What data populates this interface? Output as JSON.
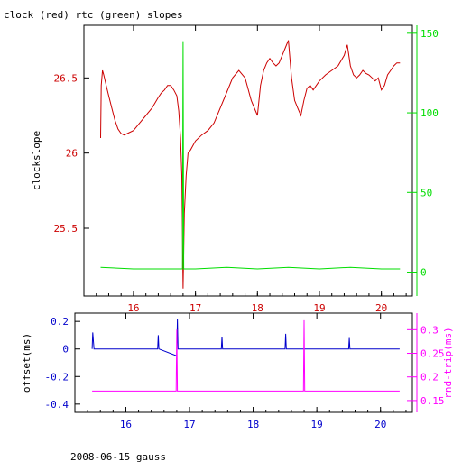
{
  "footer": "2008-06-15 gauss",
  "colors": {
    "frame": "#000000",
    "clock": "#cc0000",
    "rtc": "#00dd00",
    "offset": "#0000cc",
    "roundtrip": "#ff00ff"
  },
  "chart_data": [
    {
      "type": "line",
      "title": "clock (red) rtc (green) slopes",
      "xlabel": "",
      "ylabel": "clockslope",
      "y2label": "",
      "xlim": [
        15.2,
        20.5
      ],
      "ylim": [
        25.05,
        26.85
      ],
      "y2lim": [
        -15,
        155
      ],
      "xticks": [
        16,
        17,
        18,
        19,
        20
      ],
      "yticks": [
        25.5,
        26,
        26.5
      ],
      "y2ticks": [
        0,
        50,
        100,
        150
      ],
      "xticklabels": [
        "16",
        "17",
        "18",
        "19",
        "20"
      ],
      "yticklabels": [
        "25.5",
        "26",
        "26.5"
      ],
      "y2ticklabels": [
        "0",
        "50",
        "100",
        "150"
      ],
      "grid": false,
      "series": [
        {
          "name": "clock",
          "axis": "left",
          "x": [
            15.47,
            15.48,
            15.5,
            15.52,
            15.56,
            15.6,
            15.65,
            15.7,
            15.75,
            15.8,
            15.85,
            15.9,
            16.0,
            16.1,
            16.2,
            16.3,
            16.4,
            16.45,
            16.5,
            16.55,
            16.6,
            16.65,
            16.7,
            16.73,
            16.76,
            16.78,
            16.8,
            16.82,
            16.85,
            16.88,
            16.92,
            17.0,
            17.1,
            17.2,
            17.3,
            17.4,
            17.5,
            17.6,
            17.7,
            17.8,
            17.9,
            18.0,
            18.05,
            18.1,
            18.15,
            18.2,
            18.25,
            18.3,
            18.35,
            18.4,
            18.45,
            18.5,
            18.55,
            18.6,
            18.65,
            18.7,
            18.75,
            18.8,
            18.85,
            18.9,
            19.0,
            19.1,
            19.2,
            19.3,
            19.4,
            19.45,
            19.5,
            19.55,
            19.6,
            19.65,
            19.7,
            19.75,
            19.8,
            19.85,
            19.9,
            19.95,
            20.0,
            20.05,
            20.1,
            20.15,
            20.2,
            20.25,
            20.3
          ],
          "y": [
            26.1,
            26.45,
            26.55,
            26.52,
            26.45,
            26.38,
            26.3,
            26.22,
            26.16,
            26.13,
            26.12,
            26.13,
            26.15,
            26.2,
            26.25,
            26.3,
            26.37,
            26.4,
            26.42,
            26.45,
            26.45,
            26.42,
            26.38,
            26.28,
            26.1,
            25.85,
            25.1,
            25.6,
            25.85,
            26.0,
            26.02,
            26.08,
            26.12,
            26.15,
            26.2,
            26.3,
            26.4,
            26.5,
            26.55,
            26.5,
            26.35,
            26.25,
            26.45,
            26.55,
            26.6,
            26.63,
            26.6,
            26.58,
            26.6,
            26.65,
            26.7,
            26.75,
            26.5,
            26.35,
            26.3,
            26.25,
            26.35,
            26.43,
            26.45,
            26.42,
            26.48,
            26.52,
            26.55,
            26.58,
            26.65,
            26.72,
            26.58,
            26.52,
            26.5,
            26.52,
            26.55,
            26.53,
            26.52,
            26.5,
            26.48,
            26.5,
            26.42,
            26.45,
            26.52,
            26.55,
            26.58,
            26.6,
            26.6
          ]
        },
        {
          "name": "rtc",
          "axis": "right",
          "x": [
            15.47,
            16.0,
            16.5,
            16.79,
            16.8,
            16.81,
            17.0,
            17.5,
            18.0,
            18.5,
            19.0,
            19.5,
            20.0,
            20.3
          ],
          "y": [
            3,
            2,
            2,
            2,
            145,
            2,
            2,
            3,
            2,
            3,
            2,
            3,
            2,
            2
          ]
        }
      ]
    },
    {
      "type": "line",
      "xlabel": "",
      "ylabel": "offset(ms)",
      "y2label": "rnd-trip(ms)",
      "xlim": [
        15.2,
        20.5
      ],
      "ylim": [
        -0.46,
        0.26
      ],
      "y2lim": [
        0.125,
        0.335
      ],
      "xticks": [
        16,
        17,
        18,
        19,
        20
      ],
      "yticks": [
        -0.4,
        -0.2,
        0,
        0.2
      ],
      "y2ticks": [
        0.15,
        0.2,
        0.25,
        0.3
      ],
      "xticklabels": [
        "16",
        "17",
        "18",
        "19",
        "20"
      ],
      "yticklabels": [
        "-0.4",
        "-0.2",
        "0",
        "0.2"
      ],
      "y2ticklabels": [
        "0.15",
        "0.2",
        "0.25",
        "0.3"
      ],
      "grid": false,
      "series": [
        {
          "name": "offset",
          "axis": "left",
          "x": [
            15.47,
            15.48,
            15.5,
            16.0,
            16.5,
            16.51,
            16.52,
            16.8,
            16.81,
            16.82,
            17.0,
            17.5,
            17.51,
            17.52,
            18.0,
            18.5,
            18.51,
            18.52,
            19.0,
            19.5,
            19.51,
            19.52,
            20.0,
            20.3
          ],
          "y": [
            0.0,
            0.12,
            0.0,
            0.0,
            0.0,
            0.1,
            0.0,
            -0.05,
            0.22,
            0.0,
            0.0,
            0.0,
            0.09,
            0.0,
            0.0,
            0.0,
            0.11,
            0.0,
            0.0,
            0.0,
            0.08,
            0.0,
            0.0,
            0.0
          ]
        },
        {
          "name": "rnd-trip",
          "axis": "right",
          "x": [
            15.47,
            16.0,
            16.5,
            16.79,
            16.8,
            16.81,
            17.0,
            17.5,
            18.0,
            18.5,
            18.79,
            18.8,
            18.81,
            19.0,
            19.5,
            20.0,
            20.3
          ],
          "y": [
            0.17,
            0.17,
            0.17,
            0.17,
            0.3,
            0.17,
            0.17,
            0.17,
            0.17,
            0.17,
            0.17,
            0.32,
            0.17,
            0.17,
            0.17,
            0.17,
            0.17
          ]
        }
      ]
    }
  ]
}
